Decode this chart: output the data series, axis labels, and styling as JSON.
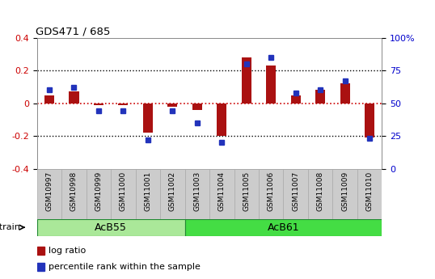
{
  "title": "GDS471 / 685",
  "samples": [
    "GSM10997",
    "GSM10998",
    "GSM10999",
    "GSM11000",
    "GSM11001",
    "GSM11002",
    "GSM11003",
    "GSM11004",
    "GSM11005",
    "GSM11006",
    "GSM11007",
    "GSM11008",
    "GSM11009",
    "GSM11010"
  ],
  "log_ratio": [
    0.05,
    0.07,
    -0.01,
    -0.01,
    -0.18,
    -0.02,
    -0.04,
    -0.2,
    0.28,
    0.23,
    0.05,
    0.08,
    0.12,
    -0.21
  ],
  "percentile": [
    60,
    62,
    44,
    44,
    22,
    44,
    35,
    20,
    80,
    85,
    58,
    60,
    67,
    23
  ],
  "bar_color": "#aa1111",
  "dot_color": "#2233bb",
  "hline_color": "#cc0000",
  "groups": [
    {
      "label": "AcB55",
      "start": 0,
      "end": 5,
      "color": "#aae899"
    },
    {
      "label": "AcB61",
      "start": 6,
      "end": 13,
      "color": "#44dd44"
    }
  ],
  "ylim": [
    -0.4,
    0.4
  ],
  "y2lim": [
    0,
    100
  ],
  "yticks_left": [
    -0.4,
    -0.2,
    0.0,
    0.2,
    0.4
  ],
  "ytick_labels_left": [
    "-0.4",
    "-0.2",
    "0",
    "0.2",
    "0.4"
  ],
  "y2ticks": [
    0,
    25,
    50,
    75,
    100
  ],
  "y2tick_labels": [
    "0",
    "25",
    "50",
    "75",
    "100%"
  ],
  "hlines_dotted": [
    -0.2,
    0.2
  ],
  "hline_red": 0.0,
  "legend_red_label": "log ratio",
  "legend_blue_label": "percentile rank within the sample",
  "strain_label": "strain",
  "tick_color_left": "#cc0000",
  "tick_color_right": "#0000cc",
  "bar_width": 0.4,
  "dot_marker_size": 5,
  "sample_box_color": "#cccccc",
  "sample_box_edge": "#aaaaaa",
  "acb55_color": "#aae899",
  "acb61_color": "#44dd44",
  "group_edge_color": "#228833"
}
